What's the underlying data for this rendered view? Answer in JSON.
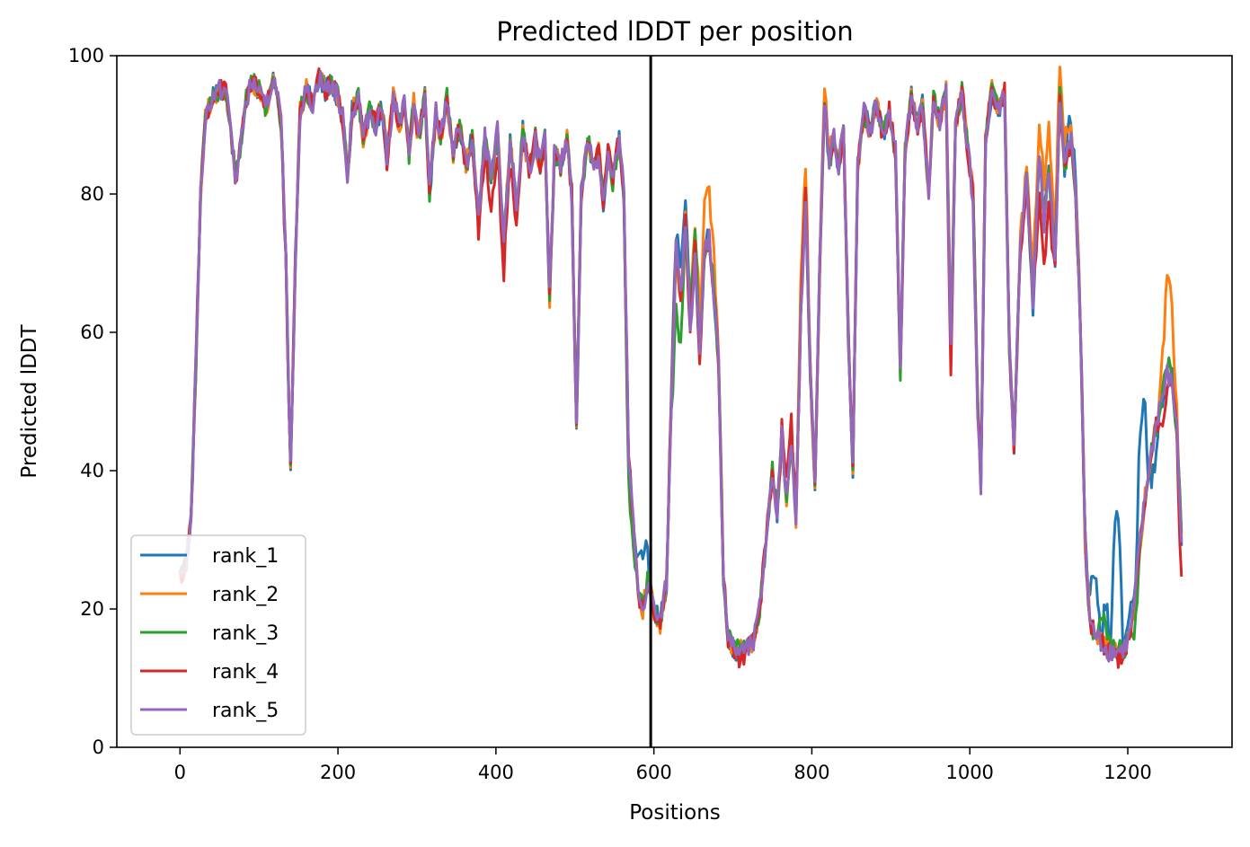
{
  "chart_data": {
    "type": "line",
    "title": "Predicted lDDT per position",
    "xlabel": "Positions",
    "ylabel": "Predicted lDDT",
    "xlim": [
      -80,
      1332
    ],
    "ylim": [
      0,
      100
    ],
    "xticks": [
      0,
      200,
      400,
      600,
      800,
      1000,
      1200
    ],
    "yticks": [
      0,
      20,
      40,
      60,
      80,
      100
    ],
    "grid": false,
    "legend_position": "lower-left",
    "vline_x": 596,
    "vline_color": "#000000",
    "base_profile": [
      [
        0,
        24
      ],
      [
        8,
        27
      ],
      [
        14,
        33
      ],
      [
        20,
        55
      ],
      [
        26,
        80
      ],
      [
        32,
        91
      ],
      [
        40,
        94
      ],
      [
        50,
        95
      ],
      [
        58,
        95
      ],
      [
        64,
        90
      ],
      [
        70,
        82
      ],
      [
        76,
        86
      ],
      [
        84,
        94
      ],
      [
        92,
        96
      ],
      [
        100,
        95
      ],
      [
        108,
        92
      ],
      [
        116,
        96
      ],
      [
        122,
        96
      ],
      [
        128,
        90
      ],
      [
        134,
        70
      ],
      [
        140,
        40
      ],
      [
        146,
        70
      ],
      [
        152,
        92
      ],
      [
        160,
        95
      ],
      [
        168,
        93
      ],
      [
        176,
        97
      ],
      [
        184,
        95
      ],
      [
        192,
        96
      ],
      [
        200,
        94
      ],
      [
        206,
        91
      ],
      [
        212,
        83
      ],
      [
        218,
        92
      ],
      [
        226,
        94
      ],
      [
        232,
        88
      ],
      [
        240,
        92
      ],
      [
        248,
        90
      ],
      [
        256,
        93
      ],
      [
        262,
        85
      ],
      [
        270,
        94
      ],
      [
        278,
        90
      ],
      [
        284,
        93
      ],
      [
        290,
        86
      ],
      [
        296,
        93
      ],
      [
        302,
        88
      ],
      [
        310,
        94
      ],
      [
        316,
        80
      ],
      [
        324,
        92
      ],
      [
        330,
        88
      ],
      [
        338,
        94
      ],
      [
        346,
        86
      ],
      [
        354,
        90
      ],
      [
        362,
        84
      ],
      [
        370,
        88
      ],
      [
        378,
        76
      ],
      [
        386,
        88
      ],
      [
        394,
        82
      ],
      [
        402,
        89
      ],
      [
        410,
        72
      ],
      [
        418,
        88
      ],
      [
        426,
        78
      ],
      [
        434,
        89
      ],
      [
        442,
        83
      ],
      [
        450,
        88
      ],
      [
        456,
        84
      ],
      [
        462,
        88
      ],
      [
        468,
        65
      ],
      [
        474,
        86
      ],
      [
        482,
        84
      ],
      [
        490,
        88
      ],
      [
        496,
        80
      ],
      [
        502,
        46
      ],
      [
        508,
        80
      ],
      [
        516,
        88
      ],
      [
        524,
        84
      ],
      [
        530,
        86
      ],
      [
        536,
        79
      ],
      [
        542,
        86
      ],
      [
        548,
        82
      ],
      [
        556,
        88
      ],
      [
        562,
        80
      ],
      [
        568,
        42
      ],
      [
        574,
        32
      ],
      [
        580,
        22
      ],
      [
        586,
        20
      ],
      [
        592,
        24
      ],
      [
        600,
        20
      ],
      [
        608,
        18
      ],
      [
        616,
        24
      ],
      [
        622,
        50
      ],
      [
        628,
        72
      ],
      [
        634,
        65
      ],
      [
        640,
        76
      ],
      [
        646,
        60
      ],
      [
        652,
        72
      ],
      [
        658,
        56
      ],
      [
        664,
        72
      ],
      [
        670,
        74
      ],
      [
        676,
        66
      ],
      [
        682,
        55
      ],
      [
        688,
        25
      ],
      [
        694,
        16
      ],
      [
        702,
        14
      ],
      [
        710,
        14
      ],
      [
        718,
        14
      ],
      [
        726,
        15
      ],
      [
        734,
        20
      ],
      [
        742,
        30
      ],
      [
        750,
        40
      ],
      [
        756,
        34
      ],
      [
        762,
        45
      ],
      [
        768,
        36
      ],
      [
        774,
        45
      ],
      [
        780,
        33
      ],
      [
        786,
        62
      ],
      [
        792,
        80
      ],
      [
        798,
        54
      ],
      [
        804,
        38
      ],
      [
        810,
        70
      ],
      [
        816,
        94
      ],
      [
        822,
        84
      ],
      [
        828,
        88
      ],
      [
        834,
        84
      ],
      [
        840,
        90
      ],
      [
        846,
        60
      ],
      [
        852,
        40
      ],
      [
        858,
        84
      ],
      [
        866,
        92
      ],
      [
        874,
        89
      ],
      [
        882,
        93
      ],
      [
        890,
        88
      ],
      [
        898,
        92
      ],
      [
        906,
        86
      ],
      [
        912,
        54
      ],
      [
        918,
        86
      ],
      [
        926,
        94
      ],
      [
        934,
        90
      ],
      [
        940,
        93
      ],
      [
        948,
        80
      ],
      [
        954,
        94
      ],
      [
        962,
        90
      ],
      [
        970,
        95
      ],
      [
        976,
        58
      ],
      [
        982,
        90
      ],
      [
        990,
        95
      ],
      [
        996,
        88
      ],
      [
        1004,
        80
      ],
      [
        1010,
        50
      ],
      [
        1014,
        38
      ],
      [
        1020,
        88
      ],
      [
        1028,
        95
      ],
      [
        1036,
        92
      ],
      [
        1044,
        95
      ],
      [
        1050,
        58
      ],
      [
        1056,
        44
      ],
      [
        1064,
        72
      ],
      [
        1072,
        82
      ],
      [
        1080,
        64
      ],
      [
        1088,
        86
      ],
      [
        1094,
        76
      ],
      [
        1100,
        84
      ],
      [
        1108,
        70
      ],
      [
        1114,
        94
      ],
      [
        1120,
        84
      ],
      [
        1128,
        88
      ],
      [
        1134,
        80
      ],
      [
        1140,
        62
      ],
      [
        1146,
        30
      ],
      [
        1152,
        18
      ],
      [
        1160,
        16
      ],
      [
        1168,
        15
      ],
      [
        1176,
        14
      ],
      [
        1184,
        14
      ],
      [
        1192,
        14
      ],
      [
        1200,
        15
      ],
      [
        1208,
        20
      ],
      [
        1214,
        28
      ],
      [
        1220,
        34
      ],
      [
        1226,
        40
      ],
      [
        1232,
        44
      ],
      [
        1238,
        48
      ],
      [
        1244,
        52
      ],
      [
        1250,
        56
      ],
      [
        1256,
        54
      ],
      [
        1262,
        46
      ],
      [
        1268,
        30
      ]
    ],
    "series": [
      {
        "name": "rank_1",
        "color": "#1f77b4",
        "adjust": [
          [
            1120,
            1140,
            3
          ],
          [
            1150,
            1166,
            8
          ],
          [
            1166,
            1178,
            5
          ],
          [
            1178,
            1194,
            19
          ],
          [
            1194,
            1210,
            4
          ],
          [
            1210,
            1226,
            16
          ],
          [
            1226,
            1240,
            -4
          ],
          [
            1240,
            1256,
            -3
          ],
          [
            575,
            596,
            8
          ],
          [
            620,
            650,
            3
          ]
        ]
      },
      {
        "name": "rank_2",
        "color": "#ff7f0e",
        "adjust": [
          [
            640,
            690,
            6
          ],
          [
            780,
            800,
            5
          ],
          [
            810,
            830,
            2
          ],
          [
            1060,
            1140,
            5
          ],
          [
            1240,
            1264,
            8
          ],
          [
            1246,
            1258,
            4
          ]
        ]
      },
      {
        "name": "rank_3",
        "color": "#2ca02c",
        "adjust": [
          [
            620,
            640,
            -8
          ],
          [
            640,
            660,
            3
          ],
          [
            1160,
            1180,
            3
          ],
          [
            1200,
            1220,
            -3
          ],
          [
            560,
            580,
            -4
          ]
        ]
      },
      {
        "name": "rank_4",
        "color": "#d62728",
        "adjust": [
          [
            370,
            440,
            -3
          ],
          [
            700,
            720,
            -1
          ],
          [
            760,
            780,
            3
          ],
          [
            970,
            980,
            -3
          ],
          [
            1080,
            1110,
            -6
          ],
          [
            1180,
            1200,
            -1
          ],
          [
            1236,
            1260,
            -4
          ],
          [
            1262,
            1270,
            -5
          ]
        ]
      },
      {
        "name": "rank_5",
        "color": "#9467bd",
        "adjust": [
          [
            1000,
            1020,
            -2
          ],
          [
            1240,
            1260,
            -2
          ]
        ]
      }
    ]
  }
}
